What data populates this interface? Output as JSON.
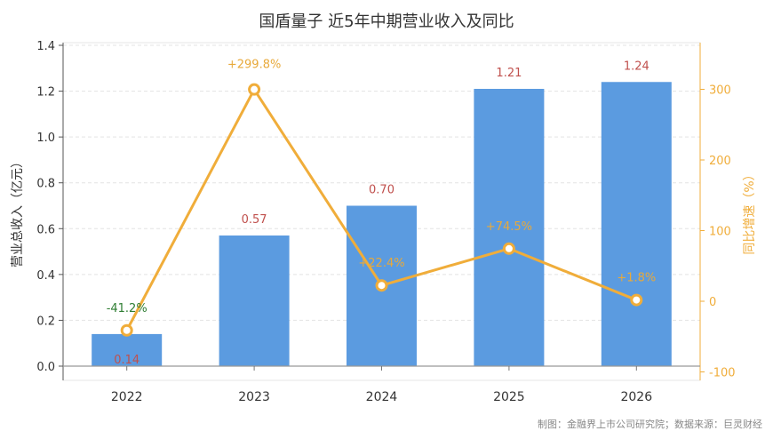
{
  "chart_data": {
    "type": "bar+line",
    "title": "国盾量子 近5年中期营业收入及同比",
    "categories": [
      "2022",
      "2023",
      "2024",
      "2025",
      "2026"
    ],
    "bar_series": {
      "ylabel": "营业总收入（亿元）",
      "values": [
        0.14,
        0.57,
        0.7,
        1.21,
        1.24
      ],
      "labels": [
        "0.14",
        "0.57",
        "0.70",
        "1.21",
        "1.24"
      ],
      "ylim": [
        0,
        1.4
      ],
      "yticks": [
        0.0,
        0.2,
        0.4,
        0.6,
        0.8,
        1.0,
        1.2,
        1.4
      ],
      "ytick_labels": [
        "0.0",
        "0.2",
        "0.4",
        "0.6",
        "0.8",
        "1.0",
        "1.2",
        "1.4"
      ],
      "color": "#5b9be0",
      "label_color": "#c0504d"
    },
    "line_series": {
      "ylabel": "同比增速（%）",
      "values": [
        -41.2,
        299.8,
        22.4,
        74.5,
        1.8
      ],
      "labels": [
        "-41.2%",
        "+299.8%",
        "+22.4%",
        "+74.5%",
        "+1.8%"
      ],
      "label_colors": [
        "#2e7d32",
        "#e8a93a",
        "#e8a93a",
        "#e8a93a",
        "#e8a93a"
      ],
      "ylim": [
        -100,
        370
      ],
      "yticks": [
        -100,
        0,
        100,
        200,
        300
      ],
      "ytick_labels": [
        "-100",
        "0",
        "100",
        "200",
        "300"
      ],
      "color": "#f0ad3a"
    },
    "grid": true
  },
  "footer": {
    "source": "制图：金融界上市公司研究院；数据来源：巨灵财经"
  }
}
